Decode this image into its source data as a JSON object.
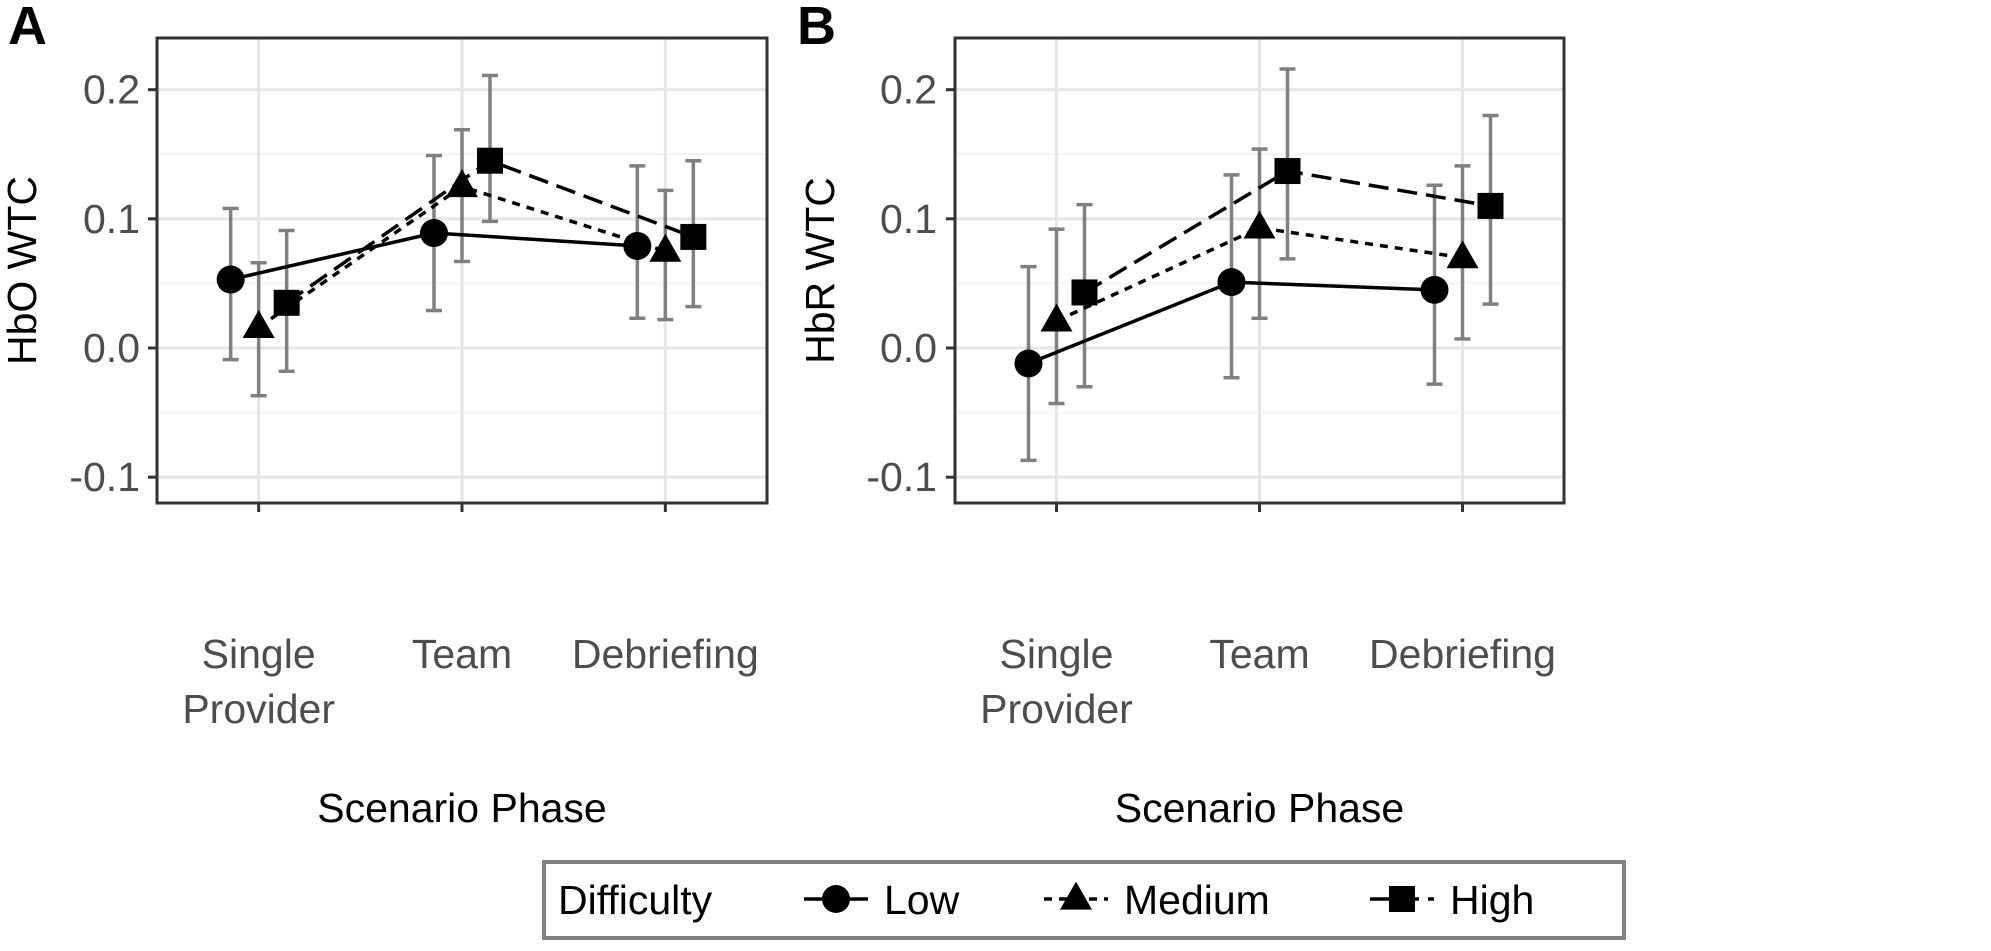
{
  "chart_data": [
    {
      "panel": "A",
      "type": "line",
      "ylabel": "HbO WTC",
      "xlabel": "Scenario Phase",
      "categories": [
        "Single Provider",
        "Team",
        "Debriefing"
      ],
      "category_lines": [
        [
          "Single",
          "Provider"
        ],
        [
          "Team"
        ],
        [
          "Debriefing"
        ]
      ],
      "ylim": [
        -0.12,
        0.24
      ],
      "yticks": [
        -0.1,
        0.0,
        0.1,
        0.2
      ],
      "ytick_labels": [
        "-0.1",
        "0.0",
        "0.1",
        "0.2"
      ],
      "series": [
        {
          "name": "Low",
          "marker": "circle",
          "dash": "solid",
          "values": [
            0.053,
            0.089,
            0.079
          ],
          "lower": [
            -0.009,
            0.029,
            0.023
          ],
          "upper": [
            0.108,
            0.149,
            0.141
          ]
        },
        {
          "name": "Medium",
          "marker": "triangle",
          "dash": "dotted",
          "values": [
            0.016,
            0.125,
            0.075
          ],
          "lower": [
            -0.037,
            0.067,
            0.022
          ],
          "upper": [
            0.066,
            0.169,
            0.122
          ]
        },
        {
          "name": "High",
          "marker": "square",
          "dash": "dashed",
          "values": [
            0.035,
            0.145,
            0.086
          ],
          "lower": [
            -0.018,
            0.098,
            0.032
          ],
          "upper": [
            0.091,
            0.211,
            0.145
          ]
        }
      ]
    },
    {
      "panel": "B",
      "type": "line",
      "ylabel": "HbR WTC",
      "xlabel": "Scenario Phase",
      "categories": [
        "Single Provider",
        "Team",
        "Debriefing"
      ],
      "category_lines": [
        [
          "Single",
          "Provider"
        ],
        [
          "Team"
        ],
        [
          "Debriefing"
        ]
      ],
      "ylim": [
        -0.12,
        0.24
      ],
      "yticks": [
        -0.1,
        0.0,
        0.1,
        0.2
      ],
      "ytick_labels": [
        "-0.1",
        "0.0",
        "0.1",
        "0.2"
      ],
      "series": [
        {
          "name": "Low",
          "marker": "circle",
          "dash": "solid",
          "values": [
            -0.012,
            0.051,
            0.045
          ],
          "lower": [
            -0.087,
            -0.023,
            -0.028
          ],
          "upper": [
            0.063,
            0.134,
            0.126
          ]
        },
        {
          "name": "Medium",
          "marker": "triangle",
          "dash": "dotted",
          "values": [
            0.021,
            0.093,
            0.07
          ],
          "lower": [
            -0.043,
            0.023,
            0.007
          ],
          "upper": [
            0.092,
            0.154,
            0.141
          ]
        },
        {
          "name": "High",
          "marker": "square",
          "dash": "dashed",
          "values": [
            0.043,
            0.137,
            0.11
          ],
          "lower": [
            -0.03,
            0.069,
            0.034
          ],
          "upper": [
            0.111,
            0.216,
            0.18
          ]
        }
      ]
    }
  ],
  "legend": {
    "title": "Difficulty",
    "items": [
      {
        "name": "Low",
        "marker": "circle",
        "dash": "solid"
      },
      {
        "name": "Medium",
        "marker": "triangle",
        "dash": "dotted"
      },
      {
        "name": "High",
        "marker": "square",
        "dash": "dashed"
      }
    ]
  },
  "colors": {
    "line": "#000000",
    "errorbar": "#808080",
    "gridMajor": "#e6e6e6",
    "gridMinor": "#f2f2f2",
    "panelBorder": "#333333",
    "legendBorder": "#808080"
  }
}
